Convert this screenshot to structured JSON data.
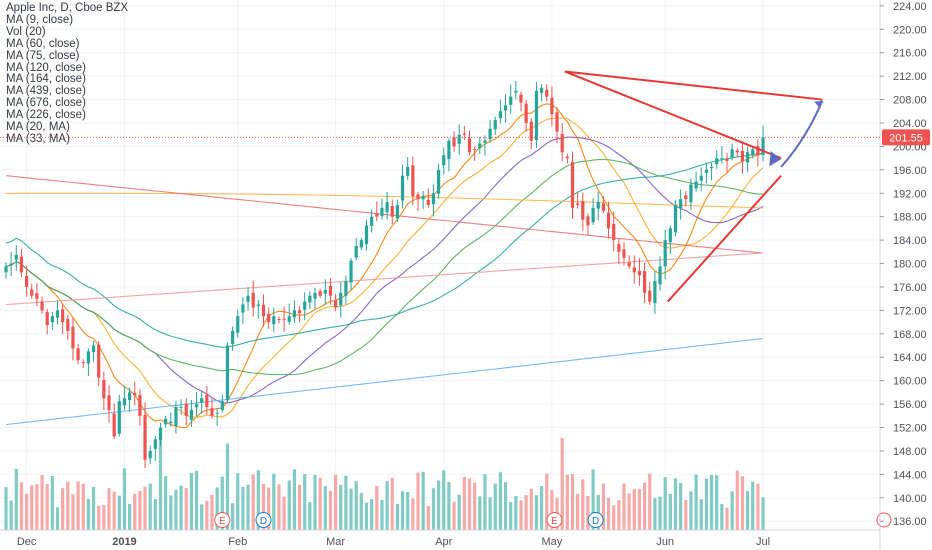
{
  "chart_data": {
    "type": "candlestick",
    "title": "Apple Inc, D, Cboe BZX",
    "indicators": [
      "MA (9, close)",
      "Vol (20)",
      "MA (60, close)",
      "MA (75, close)",
      "MA (120, close)",
      "MA (164, close)",
      "MA (439, close)",
      "MA (676, close)",
      "MA (226, close)",
      "MA (20, MA)",
      "MA (33, MA)"
    ],
    "last_price": "201.55",
    "last_price_value": 201.55,
    "ylim": [
      134.5,
      225
    ],
    "y_ticks": [
      "136.00",
      "140.00",
      "144.00",
      "148.00",
      "152.00",
      "156.00",
      "160.00",
      "164.00",
      "168.00",
      "172.00",
      "176.00",
      "180.00",
      "184.00",
      "188.00",
      "192.00",
      "196.00",
      "200.00",
      "204.00",
      "208.00",
      "212.00",
      "216.00",
      "220.00",
      "224.00"
    ],
    "x_ticks": [
      "Dec",
      "2019",
      "Feb",
      "Mar",
      "Apr",
      "May",
      "Jun",
      "Jul"
    ],
    "event_markers": [
      {
        "label": "E",
        "date": "Jan 29"
      },
      {
        "label": "D",
        "date": "Feb 8"
      },
      {
        "label": "E",
        "date": "Apr 30"
      },
      {
        "label": "D",
        "date": "May 10"
      }
    ],
    "closes": [
      179.5,
      180,
      181.5,
      178.5,
      176,
      174.5,
      174,
      172,
      169.5,
      171,
      172,
      170,
      168.5,
      165.5,
      163.5,
      163,
      165,
      166,
      160.5,
      157,
      155,
      150.5,
      156.5,
      157,
      158,
      157.5,
      154,
      146.5,
      148,
      150,
      152,
      153.5,
      153,
      155.5,
      155.5,
      154,
      155,
      156,
      157,
      155.5,
      154,
      154.5,
      156.5,
      166,
      168.5,
      171,
      173,
      174.5,
      172.5,
      173,
      171,
      170,
      171,
      170.5,
      170.5,
      171,
      172,
      171.5,
      173.5,
      174.5,
      175,
      174.5,
      175.5,
      174.5,
      172.5,
      175,
      177,
      180.5,
      183,
      184,
      186.5,
      188,
      188,
      189.5,
      190.5,
      188,
      190,
      195,
      196.5,
      191.5,
      191,
      191.5,
      190,
      192,
      196,
      198.5,
      201,
      200,
      202,
      202,
      199,
      199.5,
      200.5,
      201,
      203,
      204.5,
      206,
      207,
      208.5,
      209.5,
      207.5,
      204,
      201,
      209.5,
      210,
      208.5,
      205.5,
      202.5,
      199,
      198,
      189.5,
      190,
      187.5,
      186.5,
      189.5,
      190.5,
      189,
      186,
      184,
      182,
      181,
      179.5,
      178.5,
      178,
      175,
      173.5,
      177,
      179.5,
      184,
      186,
      190,
      191,
      191,
      193.5,
      194,
      195,
      196,
      196.5,
      198,
      198,
      197.5,
      199.5,
      199,
      197.5,
      199,
      199.5,
      198.5,
      201.55
    ],
    "volume_ticks_note": "Volume bars shown in lower pane (Vol 20)",
    "drawings": [
      {
        "type": "line",
        "from_date": "May 2",
        "from_price": 212.8,
        "to_date": "Jul 10",
        "to_price": 208
      },
      {
        "type": "line",
        "from_date": "May 2",
        "from_price": 212.8,
        "to_date": "Jul 3",
        "to_price": 198
      },
      {
        "type": "line",
        "from_date": "Jun 3",
        "from_price": 173.5,
        "to_date": "Jul 3",
        "to_price": 195
      }
    ],
    "colors": {
      "up": "#26a69a",
      "down": "#ef5350",
      "vol_up": "#80cbc4",
      "vol_down": "#f7a9a7",
      "ma9": "#f57c00",
      "ma60": "#4caf50",
      "ma75": "#f9a825",
      "ma120": "#7e57c2",
      "ma164": "#26a69a",
      "ma226": "#ffb74d",
      "ma439": "#ef9a9a",
      "ma676": "#64b5f6",
      "ma20ma": "#e57373",
      "ma33ma": "#4fc3f7",
      "drawing": "#e53935",
      "arrow": "#5c6bc0",
      "price_tag": "#ef5350"
    }
  }
}
